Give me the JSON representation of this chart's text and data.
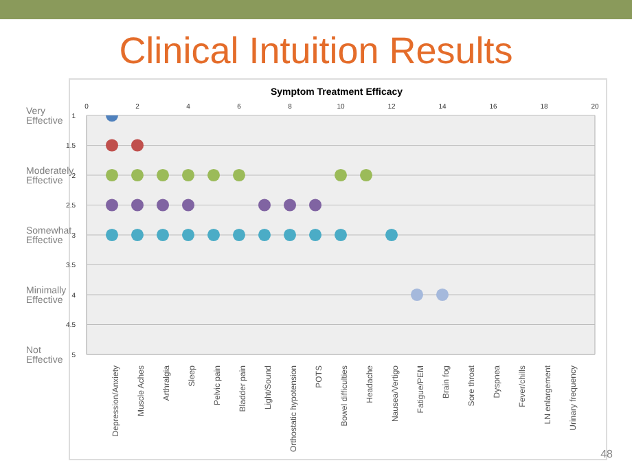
{
  "chart_data": {
    "type": "scatter",
    "title": "Clinical Intuition Results",
    "subtitle": "Symptom Treatment Efficacy",
    "categories": [
      null,
      "Depression/Anxiety",
      "Muscle Aches",
      "Arthralgia",
      "Sleep",
      "Pelvic pain",
      "Bladder pain",
      "Light/Sound",
      "Orthostatic hypotension",
      "POTS",
      "Bowel difficulties",
      "Headache",
      "Nausea/Vertigo",
      "Fatigue/PEM",
      "Brain fog",
      "Sore throat",
      "Dyspnea",
      "Fever/chills",
      "LN enlargement",
      "Urinary frequency",
      null
    ],
    "x2lim": [
      0,
      20
    ],
    "x2ticks": [
      0,
      2,
      4,
      6,
      8,
      10,
      12,
      14,
      16,
      18,
      20
    ],
    "ylim": [
      5,
      1
    ],
    "yticks": [
      1,
      1.5,
      2,
      2.5,
      3,
      3.5,
      4,
      4.5,
      5
    ],
    "grid": true,
    "marker": "circle",
    "series": [
      {
        "color": "#4f81bd",
        "values": [
          null,
          1,
          null,
          null,
          null,
          null,
          null,
          null,
          null,
          null,
          null,
          null,
          null,
          null,
          null,
          null,
          null,
          null,
          null,
          null,
          null
        ]
      },
      {
        "color": "#c0504d",
        "values": [
          null,
          1.5,
          1.5,
          null,
          null,
          null,
          null,
          null,
          null,
          null,
          null,
          null,
          null,
          null,
          null,
          null,
          null,
          null,
          null,
          null,
          null
        ]
      },
      {
        "color": "#9bbb59",
        "values": [
          null,
          2,
          2,
          2,
          2,
          2,
          2,
          null,
          null,
          null,
          2,
          2,
          null,
          null,
          null,
          null,
          null,
          null,
          null,
          null,
          null
        ]
      },
      {
        "color": "#8064a2",
        "values": [
          null,
          2.5,
          2.5,
          2.5,
          2.5,
          null,
          null,
          2.5,
          2.5,
          2.5,
          null,
          null,
          null,
          null,
          null,
          null,
          null,
          null,
          null,
          null,
          null
        ]
      },
      {
        "color": "#4bacc6",
        "values": [
          null,
          3,
          3,
          3,
          3,
          3,
          3,
          3,
          3,
          3,
          3,
          null,
          3,
          null,
          null,
          null,
          null,
          null,
          null,
          null,
          null
        ]
      },
      {
        "color": "#a5b9dc",
        "values": [
          null,
          null,
          null,
          null,
          null,
          null,
          null,
          null,
          null,
          null,
          null,
          null,
          null,
          4,
          4,
          null,
          null,
          null,
          null,
          null,
          null
        ]
      }
    ],
    "annotations": [
      "Very Effective",
      "Moderately Effective",
      "Somewhat Effective",
      "Minimally Effective",
      "Not Effective",
      "48"
    ]
  }
}
